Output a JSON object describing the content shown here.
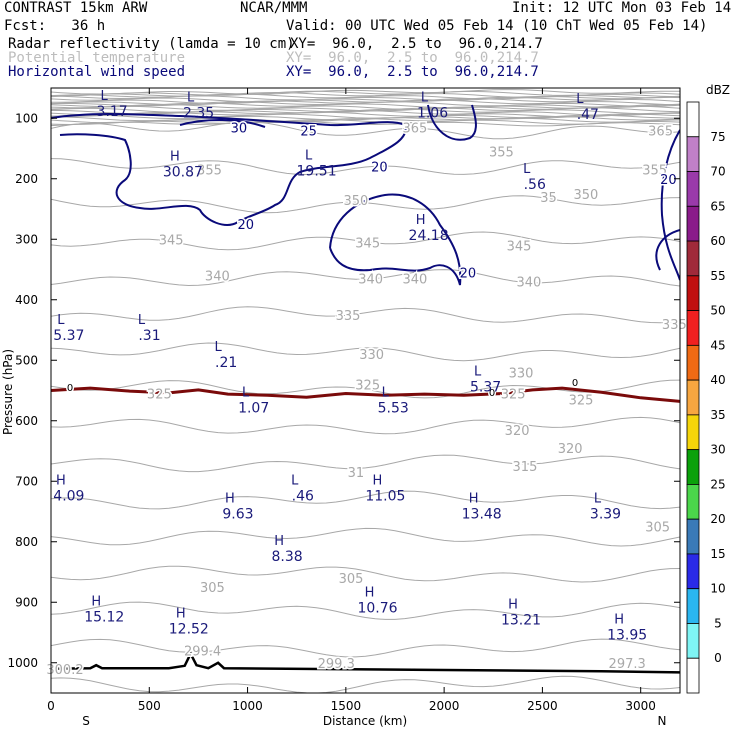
{
  "header": {
    "model": "CONTRAST 15km ARW",
    "center": "NCAR/MMM",
    "init": "Init: 12 UTC Mon 03 Feb 14",
    "fcst": "Fcst:   36 h",
    "valid": "Valid: 00 UTC Wed 05 Feb 14 (10 ChT Wed 05 Feb 14)",
    "fields": [
      {
        "name": "Radar reflectivity (lamda = 10 cm)",
        "xy": "XY=  96.0,  2.5 to  96.0,214.7",
        "color": "#000000"
      },
      {
        "name": "Potential temperature",
        "xy": "XY=  96.0,  2.5 to  96.0,214.7",
        "color": "#bdbdbd"
      },
      {
        "name": "Horizontal wind speed",
        "xy": "XY=  96.0,  2.5 to  96.0,214.7",
        "color": "#0a0a7a"
      }
    ]
  },
  "colors": {
    "theta": "#a8a8a8",
    "wind": "#0a0a7a",
    "freezing": "#7a0a0a",
    "terrain": "#000000",
    "label_blue": "#1a1a7a"
  },
  "chart_data": {
    "type": "cross-section contour",
    "title": "CONTRAST 15km ARW",
    "xlabel": "Distance (km)",
    "ylabel": "Pressure (hPa)",
    "xlim": [
      0,
      3200
    ],
    "ylim": [
      1050,
      50
    ],
    "x_ticks": [
      0,
      500,
      1000,
      1500,
      2000,
      2500,
      3000
    ],
    "y_ticks": [
      100,
      200,
      300,
      400,
      500,
      600,
      700,
      800,
      900,
      1000
    ],
    "x_ends": {
      "left": "S",
      "right": "N"
    },
    "colorbar": {
      "unit": "dBZ",
      "levels": [
        0,
        5,
        10,
        15,
        20,
        25,
        30,
        35,
        40,
        45,
        50,
        55,
        60,
        65,
        70,
        75
      ],
      "colors": [
        "#ffffff",
        "#7ff5f5",
        "#2ab6f0",
        "#2a2ae8",
        "#3a7ab8",
        "#4bd64b",
        "#0ba10b",
        "#f5d50a",
        "#f7a640",
        "#f06a14",
        "#f02020",
        "#c01010",
        "#a02a3a",
        "#8a1a8a",
        "#9a3aaa",
        "#c080c8",
        "#ffffff"
      ]
    },
    "theta_labels": [
      {
        "x": 1780,
        "p": 115,
        "text": "365"
      },
      {
        "x": 3030,
        "p": 120,
        "text": "365"
      },
      {
        "x": 735,
        "p": 185,
        "text": "355"
      },
      {
        "x": 2220,
        "p": 155,
        "text": "355"
      },
      {
        "x": 3000,
        "p": 185,
        "text": "355"
      },
      {
        "x": 1480,
        "p": 235,
        "text": "350"
      },
      {
        "x": 2460,
        "p": 230,
        "text": "35"
      },
      {
        "x": 2650,
        "p": 225,
        "text": "350"
      },
      {
        "x": 540,
        "p": 300,
        "text": "345"
      },
      {
        "x": 1540,
        "p": 305,
        "text": "345"
      },
      {
        "x": 2310,
        "p": 310,
        "text": "345"
      },
      {
        "x": 775,
        "p": 360,
        "text": "340"
      },
      {
        "x": 1555,
        "p": 365,
        "text": "340"
      },
      {
        "x": 1780,
        "p": 365,
        "text": "340"
      },
      {
        "x": 2360,
        "p": 370,
        "text": "340"
      },
      {
        "x": 1440,
        "p": 425,
        "text": "335"
      },
      {
        "x": 3100,
        "p": 440,
        "text": "335"
      },
      {
        "x": 1560,
        "p": 490,
        "text": "330"
      },
      {
        "x": 2320,
        "p": 520,
        "text": "330"
      },
      {
        "x": 480,
        "p": 555,
        "text": "325"
      },
      {
        "x": 1540,
        "p": 540,
        "text": "325"
      },
      {
        "x": 2280,
        "p": 555,
        "text": "325"
      },
      {
        "x": 2625,
        "p": 565,
        "text": "325"
      },
      {
        "x": 2300,
        "p": 615,
        "text": "320"
      },
      {
        "x": 2570,
        "p": 645,
        "text": "320"
      },
      {
        "x": 1480,
        "p": 685,
        "text": "31"
      },
      {
        "x": 2340,
        "p": 675,
        "text": "315"
      },
      {
        "x": 3015,
        "p": 775,
        "text": "305"
      },
      {
        "x": 1455,
        "p": 860,
        "text": "305"
      },
      {
        "x": 750,
        "p": 875,
        "text": "305"
      },
      {
        "x": 0,
        "p": 1010,
        "text": "300.2"
      },
      {
        "x": 700,
        "p": 980,
        "text": "299.4"
      },
      {
        "x": 1380,
        "p": 1000,
        "text": "299.3"
      },
      {
        "x": 2860,
        "p": 1000,
        "text": "297.3"
      }
    ],
    "wind_labels": [
      {
        "x": 905,
        "p": 115,
        "text": "30"
      },
      {
        "x": 1260,
        "p": 120,
        "text": "25"
      },
      {
        "x": 1620,
        "p": 180,
        "text": "20"
      },
      {
        "x": 940,
        "p": 275,
        "text": "20"
      },
      {
        "x": 2070,
        "p": 355,
        "text": "20"
      },
      {
        "x": 3090,
        "p": 200,
        "text": "20"
      }
    ],
    "extrema": [
      {
        "type": "L",
        "x": 250,
        "p": 80,
        "value": "3.17"
      },
      {
        "type": "L",
        "x": 690,
        "p": 82,
        "value": "2.35"
      },
      {
        "type": "L",
        "x": 1880,
        "p": 82,
        "value": "1.06"
      },
      {
        "type": "L",
        "x": 2670,
        "p": 85,
        "value": ".47"
      },
      {
        "type": "H",
        "x": 610,
        "p": 180,
        "value": "30.87"
      },
      {
        "type": "L",
        "x": 1290,
        "p": 178,
        "value": "19.51"
      },
      {
        "type": "L",
        "x": 2400,
        "p": 200,
        "value": ".56"
      },
      {
        "type": "H",
        "x": 1860,
        "p": 285,
        "value": "24.18"
      },
      {
        "type": "L",
        "x": 30,
        "p": 450,
        "value": "5.37"
      },
      {
        "type": "L",
        "x": 440,
        "p": 450,
        "value": ".31"
      },
      {
        "type": "L",
        "x": 830,
        "p": 495,
        "value": ".21"
      },
      {
        "type": "L",
        "x": 2150,
        "p": 535,
        "value": "5.37"
      },
      {
        "type": "L",
        "x": 970,
        "p": 570,
        "value": "1.07"
      },
      {
        "type": "L",
        "x": 1680,
        "p": 570,
        "value": "5.53"
      },
      {
        "type": "H",
        "x": 30,
        "p": 715,
        "value": "4.09"
      },
      {
        "type": "L",
        "x": 1220,
        "p": 715,
        "value": ".46"
      },
      {
        "type": "H",
        "x": 1640,
        "p": 715,
        "value": "11.05"
      },
      {
        "type": "H",
        "x": 890,
        "p": 745,
        "value": "9.63"
      },
      {
        "type": "H",
        "x": 2130,
        "p": 745,
        "value": "13.48"
      },
      {
        "type": "L",
        "x": 2760,
        "p": 745,
        "value": "3.39"
      },
      {
        "type": "H",
        "x": 1140,
        "p": 815,
        "value": "8.38"
      },
      {
        "type": "H",
        "x": 1600,
        "p": 900,
        "value": "10.76"
      },
      {
        "type": "H",
        "x": 210,
        "p": 915,
        "value": "15.12"
      },
      {
        "type": "H",
        "x": 640,
        "p": 935,
        "value": "12.52"
      },
      {
        "type": "H",
        "x": 2330,
        "p": 920,
        "value": "13.21"
      },
      {
        "type": "H",
        "x": 2870,
        "p": 945,
        "value": "13.95"
      }
    ],
    "freezing_level_label": "0",
    "freezing_level": {
      "x": [
        0,
        200,
        400,
        600,
        750,
        900,
        1100,
        1300,
        1500,
        1700,
        1900,
        2100,
        2300,
        2450,
        2600,
        2800,
        3000,
        3200
      ],
      "p": [
        550,
        546,
        551,
        554,
        549,
        556,
        558,
        561,
        555,
        558,
        556,
        558,
        555,
        549,
        546,
        553,
        562,
        568
      ]
    },
    "terrain": {
      "x": [
        0,
        200,
        230,
        260,
        600,
        680,
        710,
        740,
        800,
        850,
        880,
        1200,
        1600,
        2000,
        2400,
        2800,
        3200
      ],
      "p": [
        1010,
        1009,
        1004,
        1009,
        1009,
        1005,
        985,
        1004,
        1009,
        1000,
        1009,
        1010,
        1011,
        1012,
        1013,
        1014,
        1016
      ]
    }
  }
}
